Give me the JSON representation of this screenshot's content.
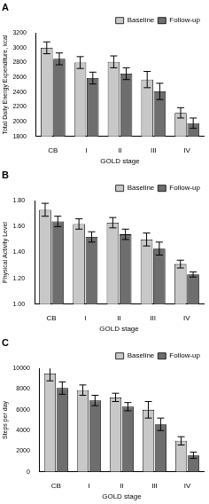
{
  "chart_data": [
    {
      "type": "bar",
      "title": "A",
      "x_label": "GOLD stage",
      "y_label": "Total Daily Energy Expenditure, kcal",
      "categories": [
        "CB",
        "I",
        "II",
        "III",
        "IV"
      ],
      "series": [
        {
          "name": "Baseline",
          "color": "#c8c8c8",
          "values": [
            3000,
            2800,
            2810,
            2570,
            2120
          ],
          "errors": [
            80,
            80,
            80,
            110,
            70
          ]
        },
        {
          "name": "Follow-up",
          "color": "#6e6e6e",
          "values": [
            2850,
            2590,
            2650,
            2410,
            1980
          ],
          "errors": [
            80,
            80,
            80,
            110,
            70
          ]
        }
      ],
      "ylim": [
        1800,
        3200
      ],
      "yticks": [
        1800,
        2000,
        2200,
        2400,
        2600,
        2800,
        3000,
        3200
      ],
      "grid": false,
      "legend": "upper right"
    },
    {
      "type": "bar",
      "title": "B",
      "x_label": "GOLD stage",
      "y_label": "Physical Activity Level",
      "categories": [
        "CB",
        "I",
        "II",
        "III",
        "IV"
      ],
      "series": [
        {
          "name": "Baseline",
          "color": "#c8c8c8",
          "values": [
            1.73,
            1.62,
            1.63,
            1.5,
            1.31
          ],
          "errors": [
            0.05,
            0.04,
            0.04,
            0.05,
            0.03
          ]
        },
        {
          "name": "Follow-up",
          "color": "#6e6e6e",
          "values": [
            1.64,
            1.52,
            1.54,
            1.43,
            1.23
          ],
          "errors": [
            0.04,
            0.04,
            0.04,
            0.05,
            0.02
          ]
        }
      ],
      "ylim": [
        1.0,
        1.8
      ],
      "yticks": [
        {
          "value": 1.0,
          "label": "1.00"
        },
        {
          "value": 1.2,
          "label": "1.20"
        },
        {
          "value": 1.4,
          "label": "1.40"
        },
        {
          "value": 1.6,
          "label": "1.60"
        },
        {
          "value": 1.8,
          "label": "1.80"
        }
      ],
      "grid": false,
      "legend": "upper right"
    },
    {
      "type": "bar",
      "title": "C",
      "x_label": "GOLD stage",
      "y_label": "Steps per day",
      "categories": [
        "CB",
        "I",
        "II",
        "III",
        "IV"
      ],
      "series": [
        {
          "name": "Baseline",
          "color": "#c8c8c8",
          "values": [
            9500,
            7900,
            7200,
            6000,
            3000
          ],
          "errors": [
            700,
            500,
            400,
            800,
            400
          ]
        },
        {
          "name": "Follow-up",
          "color": "#6e6e6e",
          "values": [
            8100,
            6900,
            6300,
            4600,
            1600
          ],
          "errors": [
            600,
            500,
            400,
            600,
            300
          ]
        }
      ],
      "ylim": [
        0,
        10000
      ],
      "yticks": [
        0,
        2000,
        4000,
        6000,
        8000,
        10000
      ],
      "grid": false,
      "legend": "upper right"
    }
  ]
}
